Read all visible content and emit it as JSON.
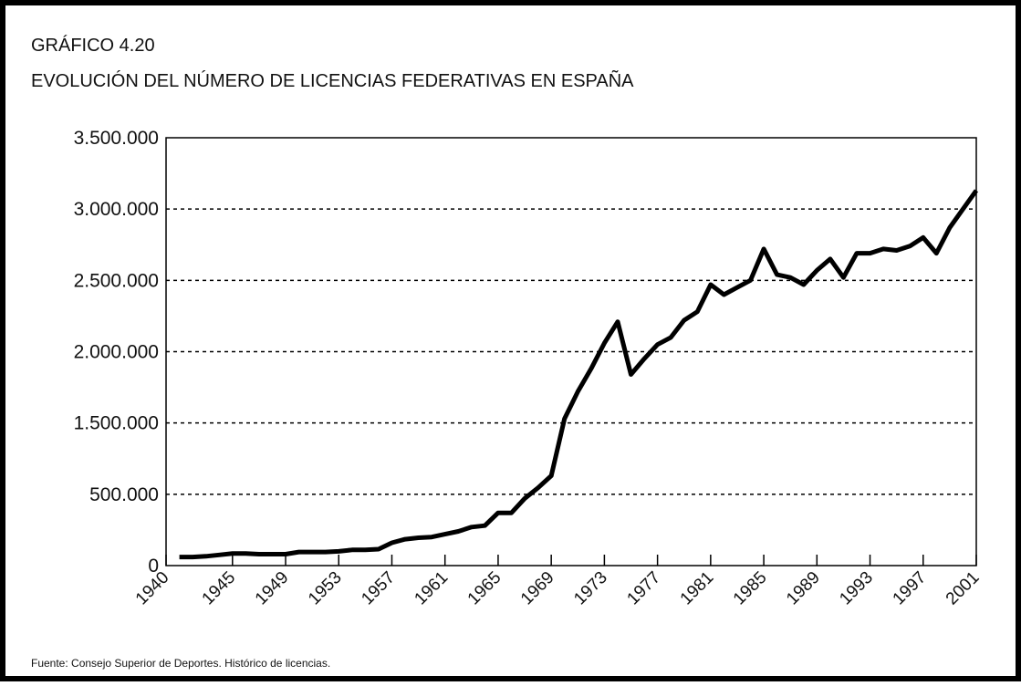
{
  "chart_data": {
    "type": "line",
    "title": "GRÁFICO 4.20",
    "subtitle": "EVOLUCIÓN DEL NÚMERO DE LICENCIAS FEDERATIVAS EN ESPAÑA",
    "source": "Fuente:  Consejo Superior de Deportes. Histórico de licencias.",
    "x": [
      1941,
      1942,
      1943,
      1944,
      1945,
      1946,
      1947,
      1948,
      1949,
      1950,
      1951,
      1952,
      1953,
      1954,
      1955,
      1956,
      1957,
      1958,
      1959,
      1960,
      1961,
      1962,
      1963,
      1964,
      1965,
      1966,
      1967,
      1968,
      1969,
      1970,
      1971,
      1972,
      1973,
      1974,
      1975,
      1976,
      1977,
      1978,
      1979,
      1980,
      1981,
      1982,
      1983,
      1984,
      1985,
      1986,
      1987,
      1988,
      1989,
      1990,
      1991,
      1992,
      1993,
      1994,
      1995,
      1996,
      1997,
      1998,
      1999,
      2000,
      2001
    ],
    "series": [
      {
        "color": "#000000",
        "values": [
          60000,
          60000,
          65000,
          75000,
          85000,
          85000,
          80000,
          80000,
          80000,
          95000,
          95000,
          95000,
          100000,
          110000,
          110000,
          115000,
          160000,
          185000,
          195000,
          200000,
          220000,
          240000,
          270000,
          280000,
          370000,
          370000,
          470000,
          590000,
          760000,
          1530000,
          1720000,
          1880000,
          2060000,
          2210000,
          1840000,
          1950000,
          2050000,
          2100000,
          2220000,
          2280000,
          2470000,
          2400000,
          2450000,
          2500000,
          2720000,
          2540000,
          2520000,
          2470000,
          2570000,
          2650000,
          2520000,
          2690000,
          2690000,
          2720000,
          2710000,
          2740000,
          2800000,
          2690000,
          2870000,
          3000000,
          3130000
        ]
      }
    ],
    "xlim": [
      1940,
      2001
    ],
    "xticks": [
      1940,
      1945,
      1949,
      1953,
      1957,
      1961,
      1965,
      1969,
      1973,
      1977,
      1981,
      1985,
      1989,
      1993,
      1997,
      2001
    ],
    "ylim": [
      0,
      3500000
    ],
    "yticks": [
      0,
      {
        "value": 500000,
        "label": "500.000"
      },
      {
        "value": 1500000,
        "label": "1.500.000"
      },
      {
        "value": 2000000,
        "label": "2.000.000"
      },
      {
        "value": 2500000,
        "label": "2.500.000"
      },
      {
        "value": 3000000,
        "label": "3.000.000"
      },
      {
        "value": 3500000,
        "label": "3.500.000"
      }
    ],
    "grid": true
  }
}
